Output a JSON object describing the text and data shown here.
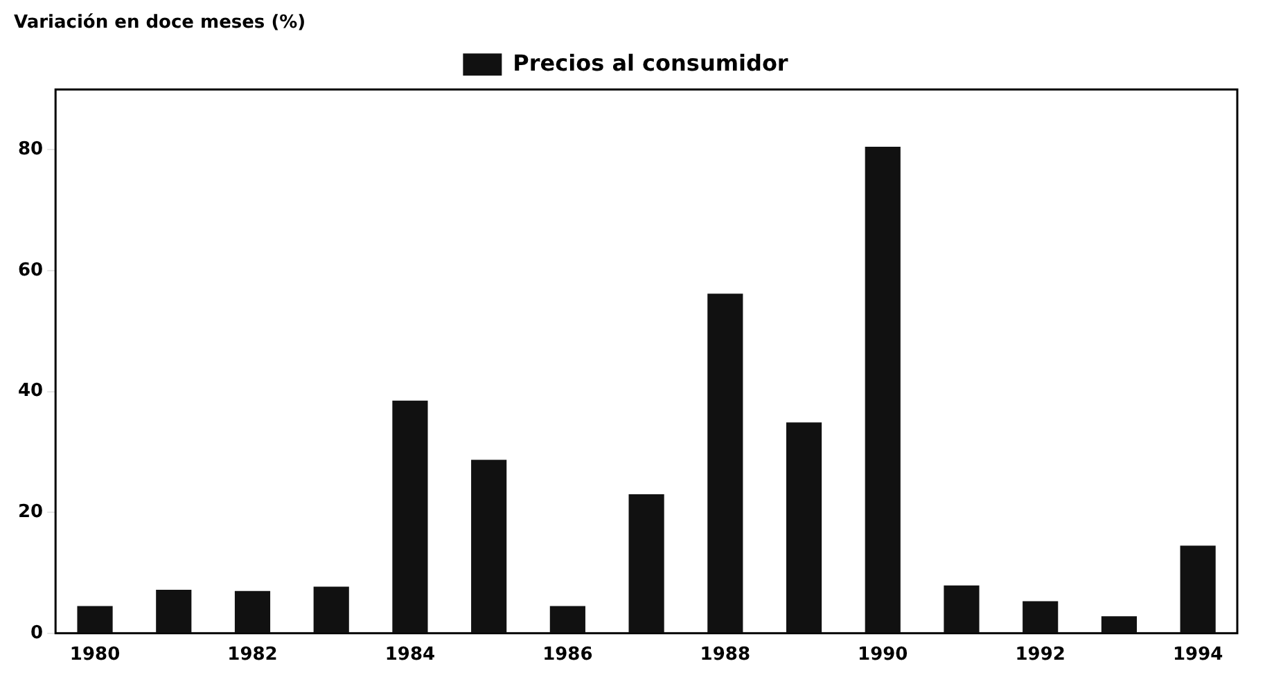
{
  "chart_data": {
    "type": "bar",
    "title": "Variación en doce meses (%)",
    "categories": [
      "1980",
      null,
      "1982",
      null,
      "1984",
      null,
      "1986",
      null,
      "1988",
      null,
      "1990",
      null,
      "1992",
      null,
      "1994"
    ],
    "series": [
      {
        "name": "Precios al consumidor",
        "color": "#111111",
        "values": [
          4.5,
          7.2,
          7.0,
          7.7,
          38.5,
          28.7,
          4.5,
          23,
          56.2,
          34.9,
          80.5,
          7.9,
          5.3,
          2.8,
          14.5
        ]
      }
    ],
    "ylim": [
      0,
      90
    ],
    "yticks": [
      0,
      20,
      40,
      60,
      80
    ],
    "grid": false,
    "legend": "top"
  }
}
